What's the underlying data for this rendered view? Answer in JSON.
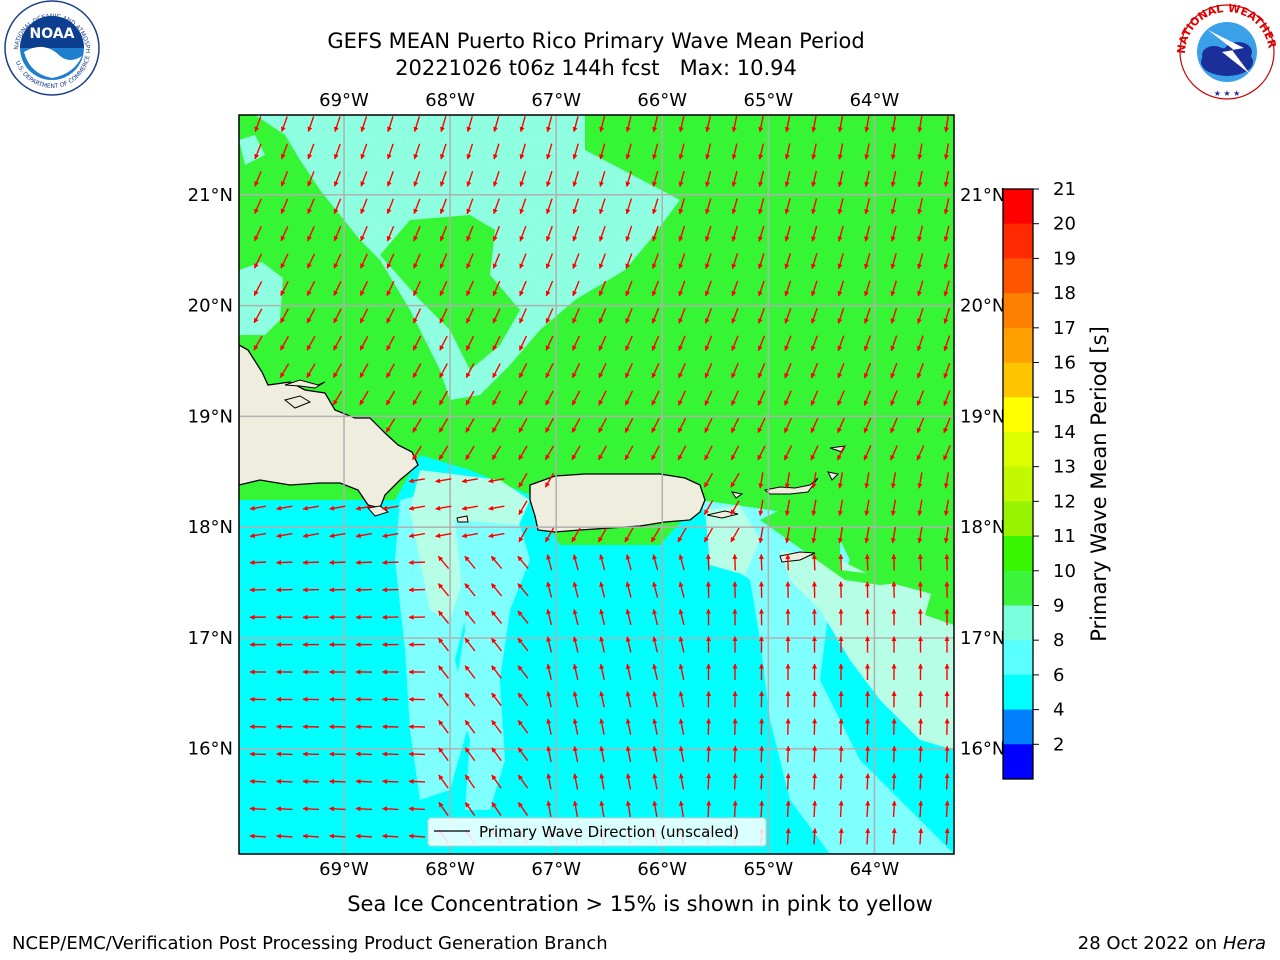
{
  "title": {
    "line1": "GEFS MEAN Puerto Rico Primary Wave Mean Period",
    "line2": "20221026 t06z 144h fcst   Max: 10.94"
  },
  "map": {
    "lon_ticks": [
      "69°W",
      "68°W",
      "67°W",
      "66°W",
      "65°W",
      "64°W"
    ],
    "lon_values": [
      -69,
      -68,
      -67,
      -66,
      -65,
      -64
    ],
    "lat_ticks": [
      "21°N",
      "20°N",
      "19°N",
      "18°N",
      "17°N",
      "16°N"
    ],
    "lat_values": [
      21,
      20,
      19,
      18,
      17,
      16
    ],
    "lon_range": [
      -69.99,
      -63.25
    ],
    "lat_range": [
      15.05,
      21.72
    ],
    "grid": true,
    "legend_label": "Primary Wave Direction (unscaled)",
    "legend_position": "lower-center",
    "arrow_color": "#ff0000",
    "land_color": "#efedde",
    "regions": [
      {
        "name": "north swell zone",
        "period_class": "10-11",
        "color": "#35f535"
      },
      {
        "name": "northwest/central pocket",
        "period_class": "9-10",
        "color": "#8effe0"
      },
      {
        "name": "south waters",
        "period_class": "6-8",
        "color": "#00ffff"
      },
      {
        "name": "south tongues",
        "period_class": "8-9",
        "color": "#80ffff"
      },
      {
        "name": "southeast waters",
        "period_class": "9-10",
        "color": "#b6ffe6"
      }
    ]
  },
  "colorbar": {
    "label": "Primary Wave Mean Period [s]",
    "ticks": [
      "21",
      "20",
      "19",
      "18",
      "17",
      "16",
      "15",
      "14",
      "13",
      "12",
      "11",
      "10",
      "9",
      "8",
      "6",
      "4",
      "2"
    ],
    "colors": [
      "#ff0000",
      "#ff2a00",
      "#ff5500",
      "#ff7f00",
      "#ffa000",
      "#ffc400",
      "#ffff00",
      "#dcff00",
      "#c2f800",
      "#98f300",
      "#38f500",
      "#3df53d",
      "#7bffdc",
      "#5affff",
      "#00ffff",
      "#0080ff",
      "#0000ff"
    ]
  },
  "subtitle": "Sea Ice Concentration > 15% is shown in pink to yellow",
  "footer": {
    "left": "NCEP/EMC/Verification Post Processing Product Generation Branch",
    "right_date": "28 Oct 2022 on ",
    "right_host": "Hera"
  },
  "logos": {
    "noaa": {
      "text": "NOAA",
      "ring_text": "NATIONAL OCEANIC AND ATMOSPHERIC ADMINISTRATION",
      "bottom_text": "U.S. DEPARTMENT OF COMMERCE"
    },
    "nws": {
      "text": "NATIONAL WEATHER SERVICE"
    }
  }
}
